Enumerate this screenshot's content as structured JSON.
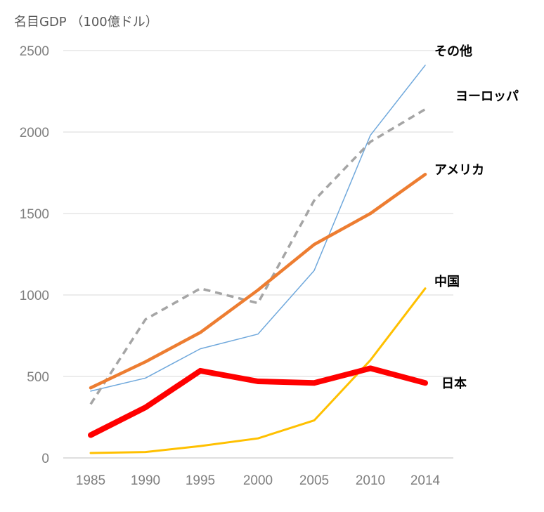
{
  "chart_data": {
    "type": "line",
    "title": "名目GDP （100億ドル）",
    "xlabel": "",
    "ylabel": "",
    "x": [
      "1985",
      "1990",
      "1995",
      "2000",
      "2005",
      "2010",
      "2014"
    ],
    "ylim": [
      0,
      2500
    ],
    "yticks": [
      0,
      500,
      1000,
      1500,
      2000,
      2500
    ],
    "grid": true,
    "legend": "inline-right",
    "series": [
      {
        "name": "その他",
        "values": [
          410,
          490,
          670,
          760,
          1150,
          1980,
          2410
        ],
        "color": "#6fa8dc",
        "width": 1.5,
        "dash": ""
      },
      {
        "name": "ヨーロッパ",
        "values": [
          330,
          850,
          1040,
          950,
          1580,
          1940,
          2140
        ],
        "color": "#a5a5a5",
        "width": 3.5,
        "dash": "10,7"
      },
      {
        "name": "アメリカ",
        "values": [
          430,
          590,
          770,
          1030,
          1310,
          1500,
          1740
        ],
        "color": "#ed7d31",
        "width": 4.5,
        "dash": ""
      },
      {
        "name": "中国",
        "values": [
          30,
          36,
          73,
          120,
          230,
          600,
          1040
        ],
        "color": "#ffc000",
        "width": 3,
        "dash": ""
      },
      {
        "name": "日本",
        "values": [
          140,
          310,
          535,
          470,
          460,
          550,
          460
        ],
        "color": "#ff0000",
        "width": 8,
        "dash": ""
      }
    ]
  }
}
